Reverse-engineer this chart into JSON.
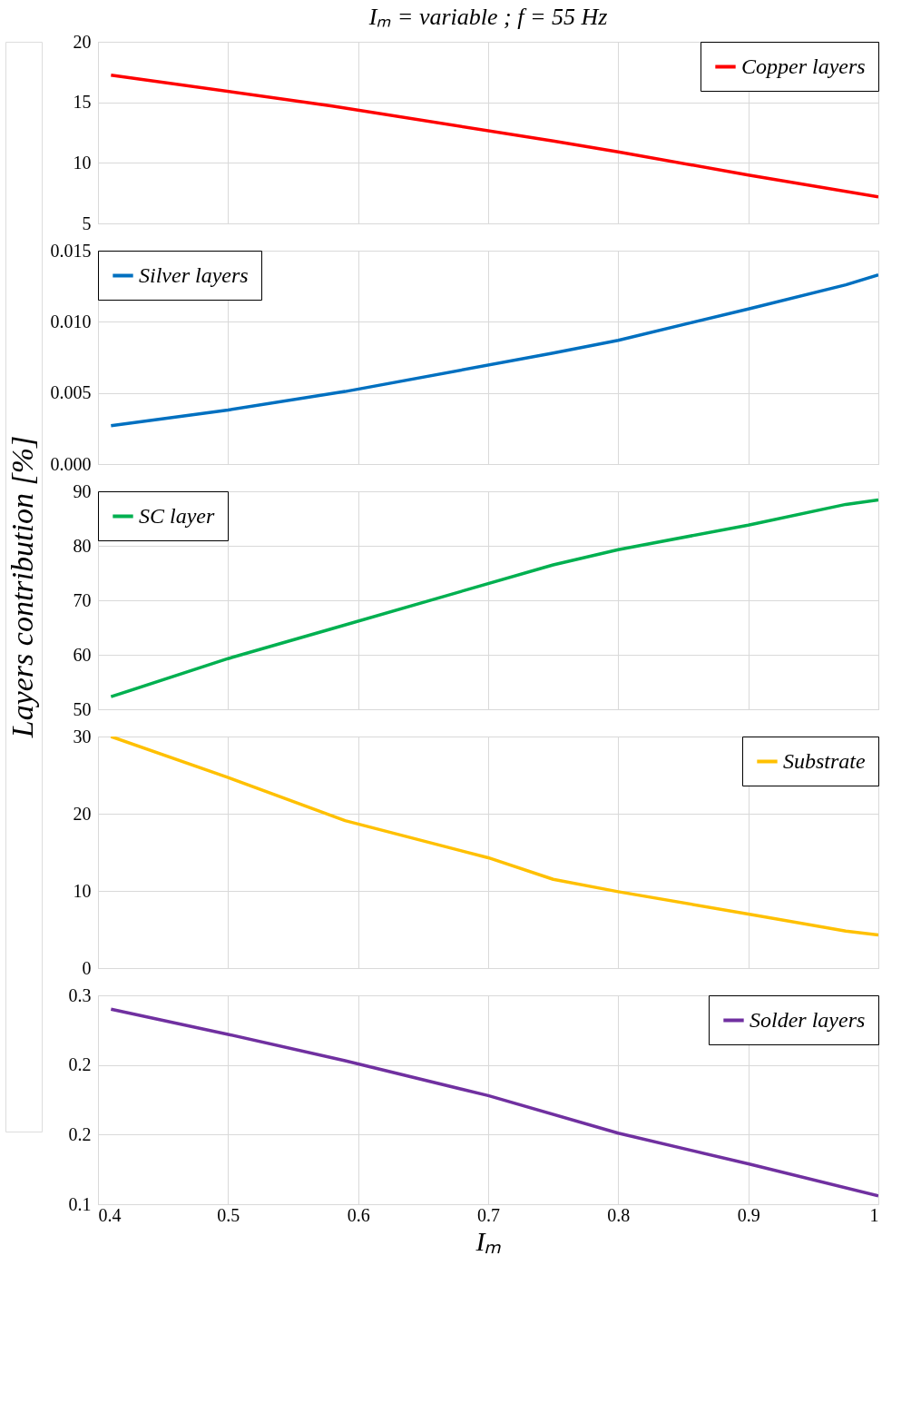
{
  "chart_data": [
    {
      "type": "line",
      "title": "Iₘ = variable     ;     f = 55 Hz",
      "xlim": [
        0.4,
        1
      ],
      "xticks": [
        0.4,
        0.5,
        0.6,
        0.7,
        0.8,
        0.9,
        1
      ],
      "ylim": [
        5,
        20
      ],
      "yticks": [
        5,
        10,
        15,
        20
      ],
      "grid": true,
      "legend": "top right",
      "tick_labels": "y",
      "x": [
        0.41,
        0.58,
        0.75,
        0.8,
        0.9,
        1.0
      ],
      "series": [
        {
          "name": "Copper layers",
          "color": "#ff0000",
          "values": [
            17.25,
            14.7,
            11.8,
            10.9,
            9.0,
            7.2
          ]
        }
      ]
    },
    {
      "type": "line",
      "xlim": [
        0.4,
        1
      ],
      "xticks": [
        0.4,
        0.5,
        0.6,
        0.7,
        0.8,
        0.9,
        1
      ],
      "ylim": [
        0,
        0.015
      ],
      "yticks": [
        {
          "value": 0,
          "label": "0.000"
        },
        {
          "value": 0.005,
          "label": "0.005"
        },
        {
          "value": 0.01,
          "label": "0.010"
        },
        {
          "value": 0.015,
          "label": "0.015"
        }
      ],
      "grid": true,
      "legend": "top left",
      "tick_labels": "y",
      "x": [
        0.41,
        0.5,
        0.59,
        0.75,
        0.8,
        0.9,
        0.975,
        1.0
      ],
      "series": [
        {
          "name": "Silver layers",
          "color": "#0070c0",
          "values": [
            0.0027,
            0.0038,
            0.0051,
            0.0078,
            0.0087,
            0.0109,
            0.0126,
            0.0133
          ]
        }
      ]
    },
    {
      "type": "line",
      "ylabel": "Layers contribution [%]",
      "xlim": [
        0.4,
        1
      ],
      "xticks": [
        0.4,
        0.5,
        0.6,
        0.7,
        0.8,
        0.9,
        1
      ],
      "ylim": [
        50,
        90
      ],
      "yticks": [
        50,
        60,
        70,
        80,
        90
      ],
      "grid": true,
      "legend": "top left",
      "tick_labels": "y",
      "x": [
        0.41,
        0.5,
        0.58,
        0.75,
        0.8,
        0.9,
        0.975,
        1.0
      ],
      "series": [
        {
          "name": "SC layer",
          "color": "#00b050",
          "values": [
            52.3,
            59.3,
            64.8,
            76.5,
            79.3,
            83.8,
            87.6,
            88.4
          ]
        }
      ]
    },
    {
      "type": "line",
      "xlim": [
        0.4,
        1
      ],
      "xticks": [
        0.4,
        0.5,
        0.6,
        0.7,
        0.8,
        0.9,
        1
      ],
      "ylim": [
        0,
        30
      ],
      "yticks": [
        0,
        10,
        20,
        30
      ],
      "grid": true,
      "legend": "top right",
      "tick_labels": "y",
      "x": [
        0.41,
        0.5,
        0.59,
        0.7,
        0.75,
        0.8,
        0.9,
        0.975,
        1.0
      ],
      "series": [
        {
          "name": "Substrate",
          "color": "#ffc000",
          "values": [
            30,
            24.7,
            19.1,
            14.3,
            11.5,
            9.9,
            7.0,
            4.8,
            4.3
          ]
        }
      ]
    },
    {
      "type": "line",
      "xlabel": "Iₘ",
      "xlim": [
        0.4,
        1
      ],
      "xticks": [
        0.4,
        0.5,
        0.6,
        0.7,
        0.8,
        0.9,
        1
      ],
      "ylim": [
        0.1,
        0.25
      ],
      "yticks": [
        {
          "value": 0.1,
          "label": "0.1"
        },
        {
          "value": 0.15,
          "label": "0.2"
        },
        {
          "value": 0.2,
          "label": "0.2"
        },
        {
          "value": 0.25,
          "label": "0.3"
        }
      ],
      "grid": true,
      "legend": "top right",
      "x": [
        0.41,
        0.5,
        0.59,
        0.7,
        0.8,
        0.9,
        1.0
      ],
      "series": [
        {
          "name": "Solder layers",
          "color": "#7030a0",
          "values": [
            0.24,
            0.222,
            0.203,
            0.178,
            0.151,
            0.129,
            0.106
          ]
        }
      ]
    }
  ]
}
